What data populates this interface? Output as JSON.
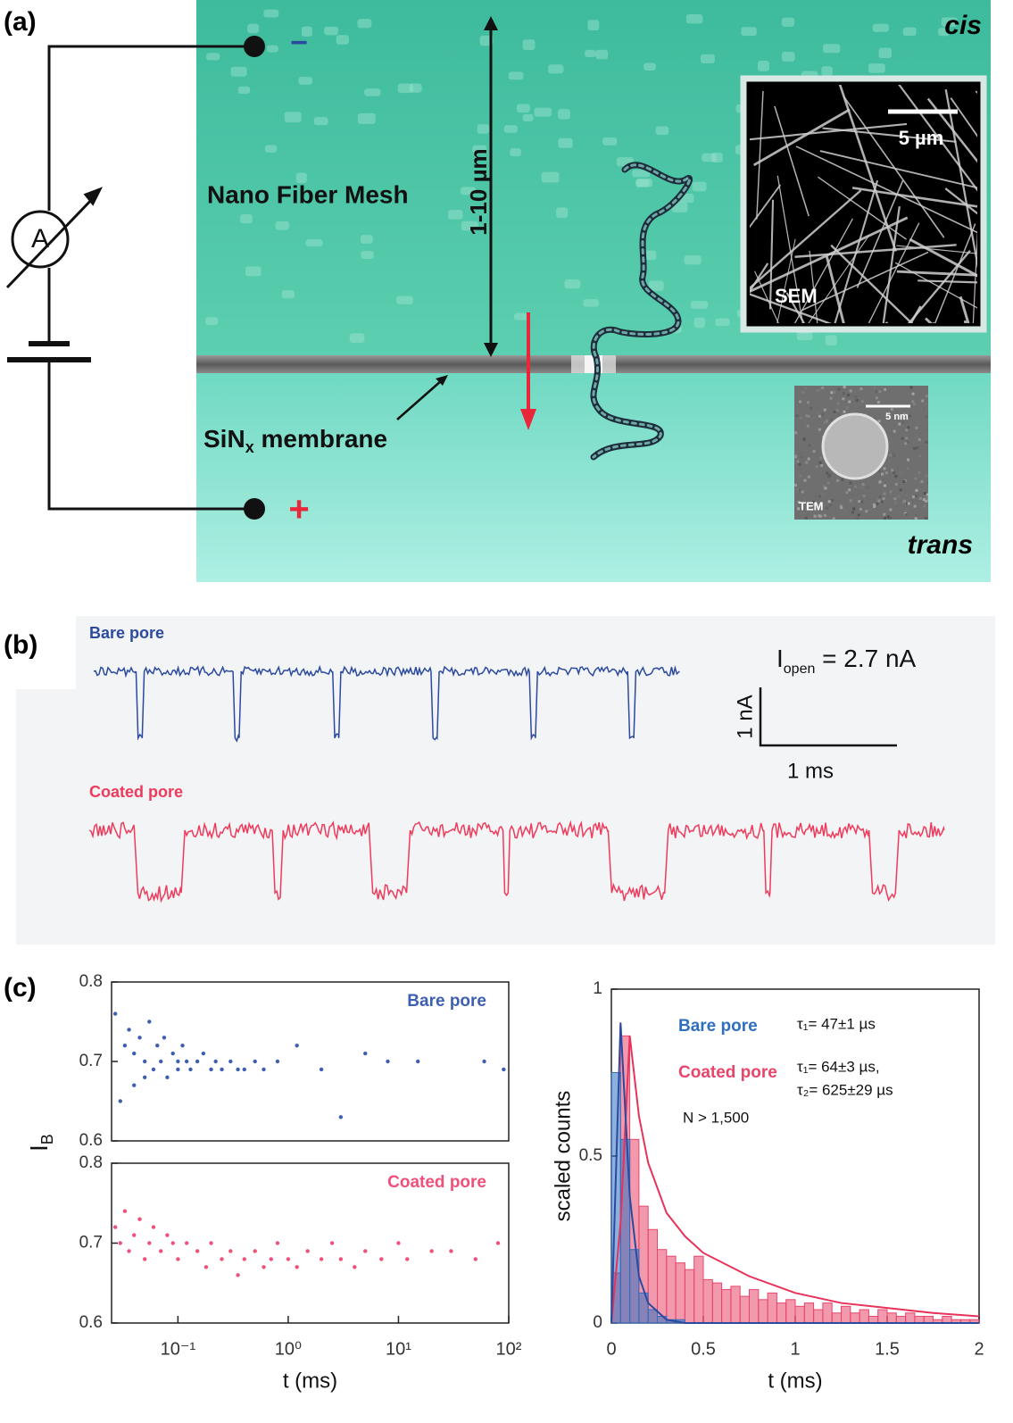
{
  "panel_a": {
    "label": "(a)",
    "cis": "cis",
    "trans": "trans",
    "minus": "−",
    "plus": "+",
    "ammeter": "A",
    "mesh": "Nano Fiber Mesh",
    "thickness": "1-10 µm",
    "membrane": "SiN",
    "membrane_sub": "x",
    "membrane_rest": " membrane",
    "sem_label": "SEM",
    "sem_scale": "5 µm",
    "tem_label": "TEM",
    "tem_scale": "5 nm"
  },
  "panel_b": {
    "label": "(b)",
    "bare": "Bare pore",
    "coated": "Coated pore",
    "i_open": "I",
    "i_open_sub": "open",
    "i_open_value": " = 2.7 nA",
    "scale_y": "1 nA",
    "scale_x": "1 ms",
    "bare_color": "#2c4aa0",
    "coated_color": "#ee3b5c",
    "bare_duration": 4.29,
    "coated_duration": 6.26,
    "bare_depth": 1.15,
    "coated_depth": 1.08,
    "bare_events": [
      [
        0.31,
        0.37
      ],
      [
        1.02,
        1.08
      ],
      [
        1.75,
        1.81
      ],
      [
        2.47,
        2.53
      ],
      [
        3.19,
        3.25
      ],
      [
        3.91,
        3.97
      ]
    ],
    "coated_events": [
      [
        0.33,
        0.7
      ],
      [
        1.34,
        1.42
      ],
      [
        2.05,
        2.35
      ],
      [
        3.03,
        3.08
      ],
      [
        3.8,
        4.24
      ],
      [
        4.94,
        5.0
      ],
      [
        5.71,
        5.93
      ]
    ]
  },
  "panel_c_label": "(c)",
  "chart_data": [
    {
      "type": "scatter",
      "xscale": "log",
      "ylabel": "I",
      "ylabel_sub": "B",
      "xlim": [
        0.025,
        100
      ],
      "ylim": [
        0.6,
        0.8
      ],
      "yticks": [
        0.6,
        0.7,
        0.8
      ],
      "series": [
        {
          "name": "Bare pore",
          "color": "#3d5fb0",
          "x": [
            0.027,
            0.03,
            0.033,
            0.036,
            0.04,
            0.04,
            0.045,
            0.05,
            0.05,
            0.055,
            0.06,
            0.065,
            0.07,
            0.075,
            0.08,
            0.09,
            0.1,
            0.1,
            0.11,
            0.12,
            0.13,
            0.15,
            0.17,
            0.2,
            0.22,
            0.25,
            0.3,
            0.35,
            0.4,
            0.5,
            0.6,
            0.8,
            1.2,
            2,
            3,
            5,
            8,
            15,
            60,
            90
          ],
          "values": [
            0.76,
            0.65,
            0.72,
            0.74,
            0.67,
            0.71,
            0.73,
            0.68,
            0.7,
            0.75,
            0.69,
            0.72,
            0.7,
            0.73,
            0.68,
            0.71,
            0.7,
            0.69,
            0.72,
            0.7,
            0.69,
            0.7,
            0.71,
            0.69,
            0.7,
            0.69,
            0.7,
            0.69,
            0.69,
            0.7,
            0.69,
            0.7,
            0.72,
            0.69,
            0.63,
            0.71,
            0.7,
            0.7,
            0.7,
            0.69
          ]
        }
      ]
    },
    {
      "type": "scatter",
      "xscale": "log",
      "xlabel": "t (ms)",
      "xlim": [
        0.025,
        100
      ],
      "ylim": [
        0.6,
        0.8
      ],
      "yticks": [
        0.6,
        0.7,
        0.8
      ],
      "xticks": [
        {
          "value": 0.1,
          "label": "10⁻¹"
        },
        {
          "value": 1,
          "label": "10⁰"
        },
        {
          "value": 10,
          "label": "10¹"
        },
        {
          "value": 100,
          "label": "10²"
        }
      ],
      "series": [
        {
          "name": "Coated pore",
          "color": "#f0507a",
          "x": [
            0.027,
            0.03,
            0.033,
            0.036,
            0.04,
            0.045,
            0.05,
            0.055,
            0.06,
            0.07,
            0.08,
            0.09,
            0.1,
            0.12,
            0.15,
            0.18,
            0.2,
            0.25,
            0.3,
            0.35,
            0.4,
            0.5,
            0.6,
            0.7,
            0.8,
            1,
            1.2,
            1.5,
            2,
            2.5,
            3,
            4,
            5,
            7,
            10,
            12,
            20,
            30,
            50,
            80
          ],
          "values": [
            0.72,
            0.7,
            0.74,
            0.69,
            0.71,
            0.73,
            0.68,
            0.7,
            0.72,
            0.69,
            0.71,
            0.7,
            0.68,
            0.7,
            0.69,
            0.67,
            0.7,
            0.68,
            0.69,
            0.66,
            0.68,
            0.69,
            0.67,
            0.68,
            0.7,
            0.68,
            0.67,
            0.69,
            0.68,
            0.7,
            0.68,
            0.67,
            0.69,
            0.68,
            0.7,
            0.68,
            0.69,
            0.69,
            0.68,
            0.7
          ]
        }
      ]
    },
    {
      "type": "histogram",
      "xlabel": "t (ms)",
      "ylabel": "scaled counts",
      "xlim": [
        0,
        2
      ],
      "ylim": [
        0,
        1
      ],
      "xticks": [
        0,
        0.5,
        1,
        1.5,
        2
      ],
      "yticks": [
        0,
        0.5,
        1
      ],
      "bins": [
        0,
        0.05,
        0.1,
        0.15,
        0.2,
        0.25,
        0.3,
        0.35,
        0.4,
        0.45,
        0.5,
        0.55,
        0.6,
        0.65,
        0.7,
        0.75,
        0.8,
        0.85,
        0.9,
        0.95,
        1,
        1.05,
        1.1,
        1.15,
        1.2,
        1.25,
        1.3,
        1.35,
        1.4,
        1.45,
        1.5,
        1.55,
        1.6,
        1.65,
        1.7,
        1.75,
        1.8,
        1.85,
        1.9,
        1.95,
        2
      ],
      "series": [
        {
          "name": "Coated pore",
          "color": "#e8456b",
          "values": [
            0.15,
            0.86,
            0.55,
            0.35,
            0.28,
            0.22,
            0.2,
            0.18,
            0.16,
            0.2,
            0.13,
            0.12,
            0.1,
            0.11,
            0.08,
            0.1,
            0.07,
            0.09,
            0.06,
            0.07,
            0.05,
            0.06,
            0.04,
            0.06,
            0.03,
            0.05,
            0.03,
            0.04,
            0.02,
            0.04,
            0.03,
            0.02,
            0.03,
            0.02,
            0.02,
            0.01,
            0.02,
            0.01,
            0.01,
            0.01
          ]
        },
        {
          "name": "Bare pore",
          "color": "#2f6fbf",
          "values": [
            0.75,
            0.55,
            0.22,
            0.09,
            0.04,
            0.02,
            0.01,
            0.01,
            0,
            0,
            0,
            0,
            0,
            0,
            0,
            0,
            0,
            0,
            0,
            0,
            0,
            0,
            0,
            0,
            0,
            0,
            0,
            0,
            0,
            0,
            0,
            0,
            0,
            0,
            0,
            0,
            0,
            0,
            0,
            0
          ]
        }
      ],
      "fits": [
        {
          "color": "#e8325a",
          "x": [
            0,
            0.05,
            0.1,
            0.15,
            0.2,
            0.3,
            0.4,
            0.5,
            0.75,
            1,
            1.25,
            1.5,
            1.75,
            2
          ],
          "values": [
            0,
            0.3,
            0.86,
            0.62,
            0.48,
            0.33,
            0.26,
            0.21,
            0.14,
            0.09,
            0.06,
            0.045,
            0.03,
            0.02
          ]
        },
        {
          "color": "#2a4aa0",
          "x": [
            0,
            0.05,
            0.1,
            0.15,
            0.2,
            0.3,
            0.4,
            0.5,
            0.75,
            1,
            1.25,
            1.5,
            1.75,
            2
          ],
          "values": [
            0,
            0.9,
            0.38,
            0.14,
            0.06,
            0.01,
            0,
            0,
            0,
            0,
            0,
            0,
            0,
            0
          ]
        }
      ],
      "annotations": [
        "τ₁= 47±1 µs",
        "τ₁= 64±3 µs,",
        "τ₂= 625±29 µs",
        "N > 1,500"
      ]
    }
  ]
}
